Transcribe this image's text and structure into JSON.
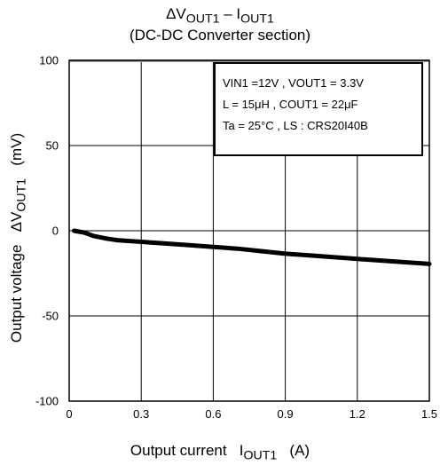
{
  "chart_data": {
    "type": "line",
    "title": "ΔV",
    "title_sub1": "OUT1",
    "title_dash": " – I",
    "title_sub2": "OUT1",
    "subtitle": "(DC-DC Converter section)",
    "xlabel": "Output current",
    "xlabel_symbol": "I",
    "xlabel_sub": "OUT1",
    "xlabel_unit": "(A)",
    "ylabel": "Output voltage",
    "ylabel_symbol": "ΔV",
    "ylabel_sub": "OUT1",
    "ylabel_unit": "(mV)",
    "xlim": [
      0,
      1.5
    ],
    "ylim": [
      -100,
      100
    ],
    "xticks": [
      "0",
      "0.3",
      "0.6",
      "0.9",
      "1.2",
      "1.5"
    ],
    "yticks": [
      "100",
      "50",
      "0",
      "-50",
      "-100"
    ],
    "grid": true,
    "legend_position": "top-right",
    "conditions": [
      "VIN1 =12V , VOUT1 = 3.3V",
      "L = 15μH , COUT1 = 22μF",
      "Ta = 25°C , LS : CRS20I40B"
    ],
    "series": [
      {
        "x": [
          0.02,
          0.04,
          0.06,
          0.08,
          0.1,
          0.15,
          0.2,
          0.3,
          0.4,
          0.5,
          0.6,
          0.7,
          0.8,
          0.9,
          1.0,
          1.1,
          1.2,
          1.3,
          1.4,
          1.5
        ],
        "y": [
          0,
          -0.5,
          -1,
          -2,
          -3,
          -4.5,
          -5.5,
          -6.5,
          -7.5,
          -8.5,
          -9.5,
          -10.5,
          -12,
          -13.5,
          -14.5,
          -15.5,
          -16.5,
          -17.5,
          -18.5,
          -19.5
        ],
        "color": "#000000"
      }
    ]
  }
}
